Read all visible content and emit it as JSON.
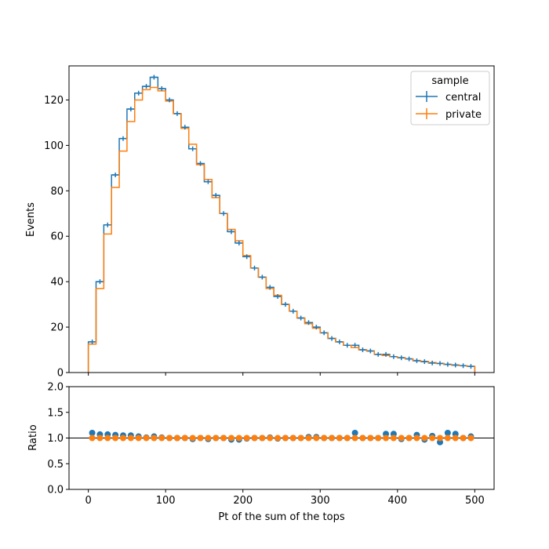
{
  "chart_data": [
    {
      "type": "step",
      "panel": "main",
      "xlabel": "",
      "ylabel": "Events",
      "xlim": [
        -25,
        525
      ],
      "ylim": [
        0,
        135
      ],
      "yticks": [
        0,
        20,
        40,
        60,
        80,
        100,
        120
      ],
      "grid": false,
      "bin_edges": [
        0,
        10,
        20,
        30,
        40,
        50,
        60,
        70,
        80,
        90,
        100,
        110,
        120,
        130,
        140,
        150,
        160,
        170,
        180,
        190,
        200,
        210,
        220,
        230,
        240,
        250,
        260,
        270,
        280,
        290,
        300,
        310,
        320,
        330,
        340,
        350,
        360,
        370,
        380,
        390,
        400,
        410,
        420,
        430,
        440,
        450,
        460,
        470,
        480,
        490,
        500
      ],
      "legend": {
        "title": "sample",
        "location": "upper right"
      },
      "series": [
        {
          "name": "central",
          "color": "#1f77b4",
          "style": "errorbar",
          "values": [
            13.5,
            40,
            65,
            87,
            103,
            116,
            123,
            126,
            130,
            125,
            120,
            114,
            108,
            98.5,
            92,
            84,
            78,
            70,
            62,
            57,
            51,
            46,
            42,
            37.5,
            33.5,
            30,
            27,
            24,
            22,
            20,
            17.5,
            15,
            13.5,
            12,
            12,
            10,
            9.5,
            8,
            8,
            7,
            6.5,
            6,
            5.2,
            4.8,
            4.2,
            4,
            3.6,
            3.3,
            3,
            2.7
          ]
        },
        {
          "name": "private",
          "color": "#ff7f0e",
          "style": "step",
          "values": [
            12.5,
            37,
            61,
            81.5,
            97.5,
            110.5,
            120,
            124.5,
            125.5,
            124,
            119.5,
            114,
            107.5,
            100.5,
            91.5,
            85,
            77,
            70,
            63,
            58,
            51.5,
            46,
            42,
            37,
            34,
            30,
            27,
            24,
            21.5,
            19.5,
            17.5,
            15,
            13.5,
            12,
            11,
            10,
            9.5,
            8,
            7.5,
            7,
            6.5,
            6,
            5.3,
            4.9,
            4.4,
            4,
            3.6,
            3.3,
            3,
            2.7
          ]
        }
      ]
    },
    {
      "type": "scatter",
      "panel": "ratio",
      "xlabel": "Pt of the sum of the tops",
      "ylabel": "Ratio",
      "xlim": [
        -25,
        525
      ],
      "ylim": [
        0,
        2
      ],
      "yticks": [
        0.0,
        0.5,
        1.0,
        1.5,
        2.0
      ],
      "ytick_labels": [
        "0.0",
        "0.5",
        "1.0",
        "1.5",
        "2.0"
      ],
      "xticks": [
        0,
        100,
        200,
        300,
        400,
        500
      ],
      "reference_line": 1.0,
      "grid": false,
      "x": [
        5,
        15,
        25,
        35,
        45,
        55,
        65,
        75,
        85,
        95,
        105,
        115,
        125,
        135,
        145,
        155,
        165,
        175,
        185,
        195,
        205,
        215,
        225,
        235,
        245,
        255,
        265,
        275,
        285,
        295,
        305,
        315,
        325,
        335,
        345,
        355,
        365,
        375,
        385,
        395,
        405,
        415,
        425,
        435,
        445,
        455,
        465,
        475,
        485,
        495
      ],
      "series": [
        {
          "name": "central",
          "color": "#1f77b4",
          "values": [
            1.1,
            1.07,
            1.07,
            1.06,
            1.05,
            1.05,
            1.03,
            1.01,
            1.03,
            1.01,
            1.0,
            1.0,
            1.0,
            0.98,
            1.0,
            0.98,
            1.0,
            1.0,
            0.97,
            0.97,
            0.99,
            1.0,
            1.0,
            1.01,
            0.99,
            1.0,
            1.0,
            1.0,
            1.02,
            1.02,
            1.0,
            1.0,
            1.0,
            1.0,
            1.1,
            1.0,
            1.0,
            1.0,
            1.08,
            1.08,
            0.98,
            1.0,
            1.06,
            0.97,
            1.04,
            0.92,
            1.1,
            1.08,
            1.0,
            1.03
          ]
        },
        {
          "name": "private",
          "color": "#ff7f0e",
          "values": [
            1,
            1,
            1,
            1,
            1,
            1,
            1,
            1,
            1,
            1,
            1,
            1,
            1,
            1,
            1,
            1,
            1,
            1,
            1,
            1,
            1,
            1,
            1,
            1,
            1,
            1,
            1,
            1,
            1,
            1,
            1,
            1,
            1,
            1,
            1,
            1,
            1,
            1,
            1,
            1,
            1,
            1,
            1,
            1,
            1,
            1,
            1,
            1,
            1,
            1
          ]
        }
      ]
    }
  ]
}
